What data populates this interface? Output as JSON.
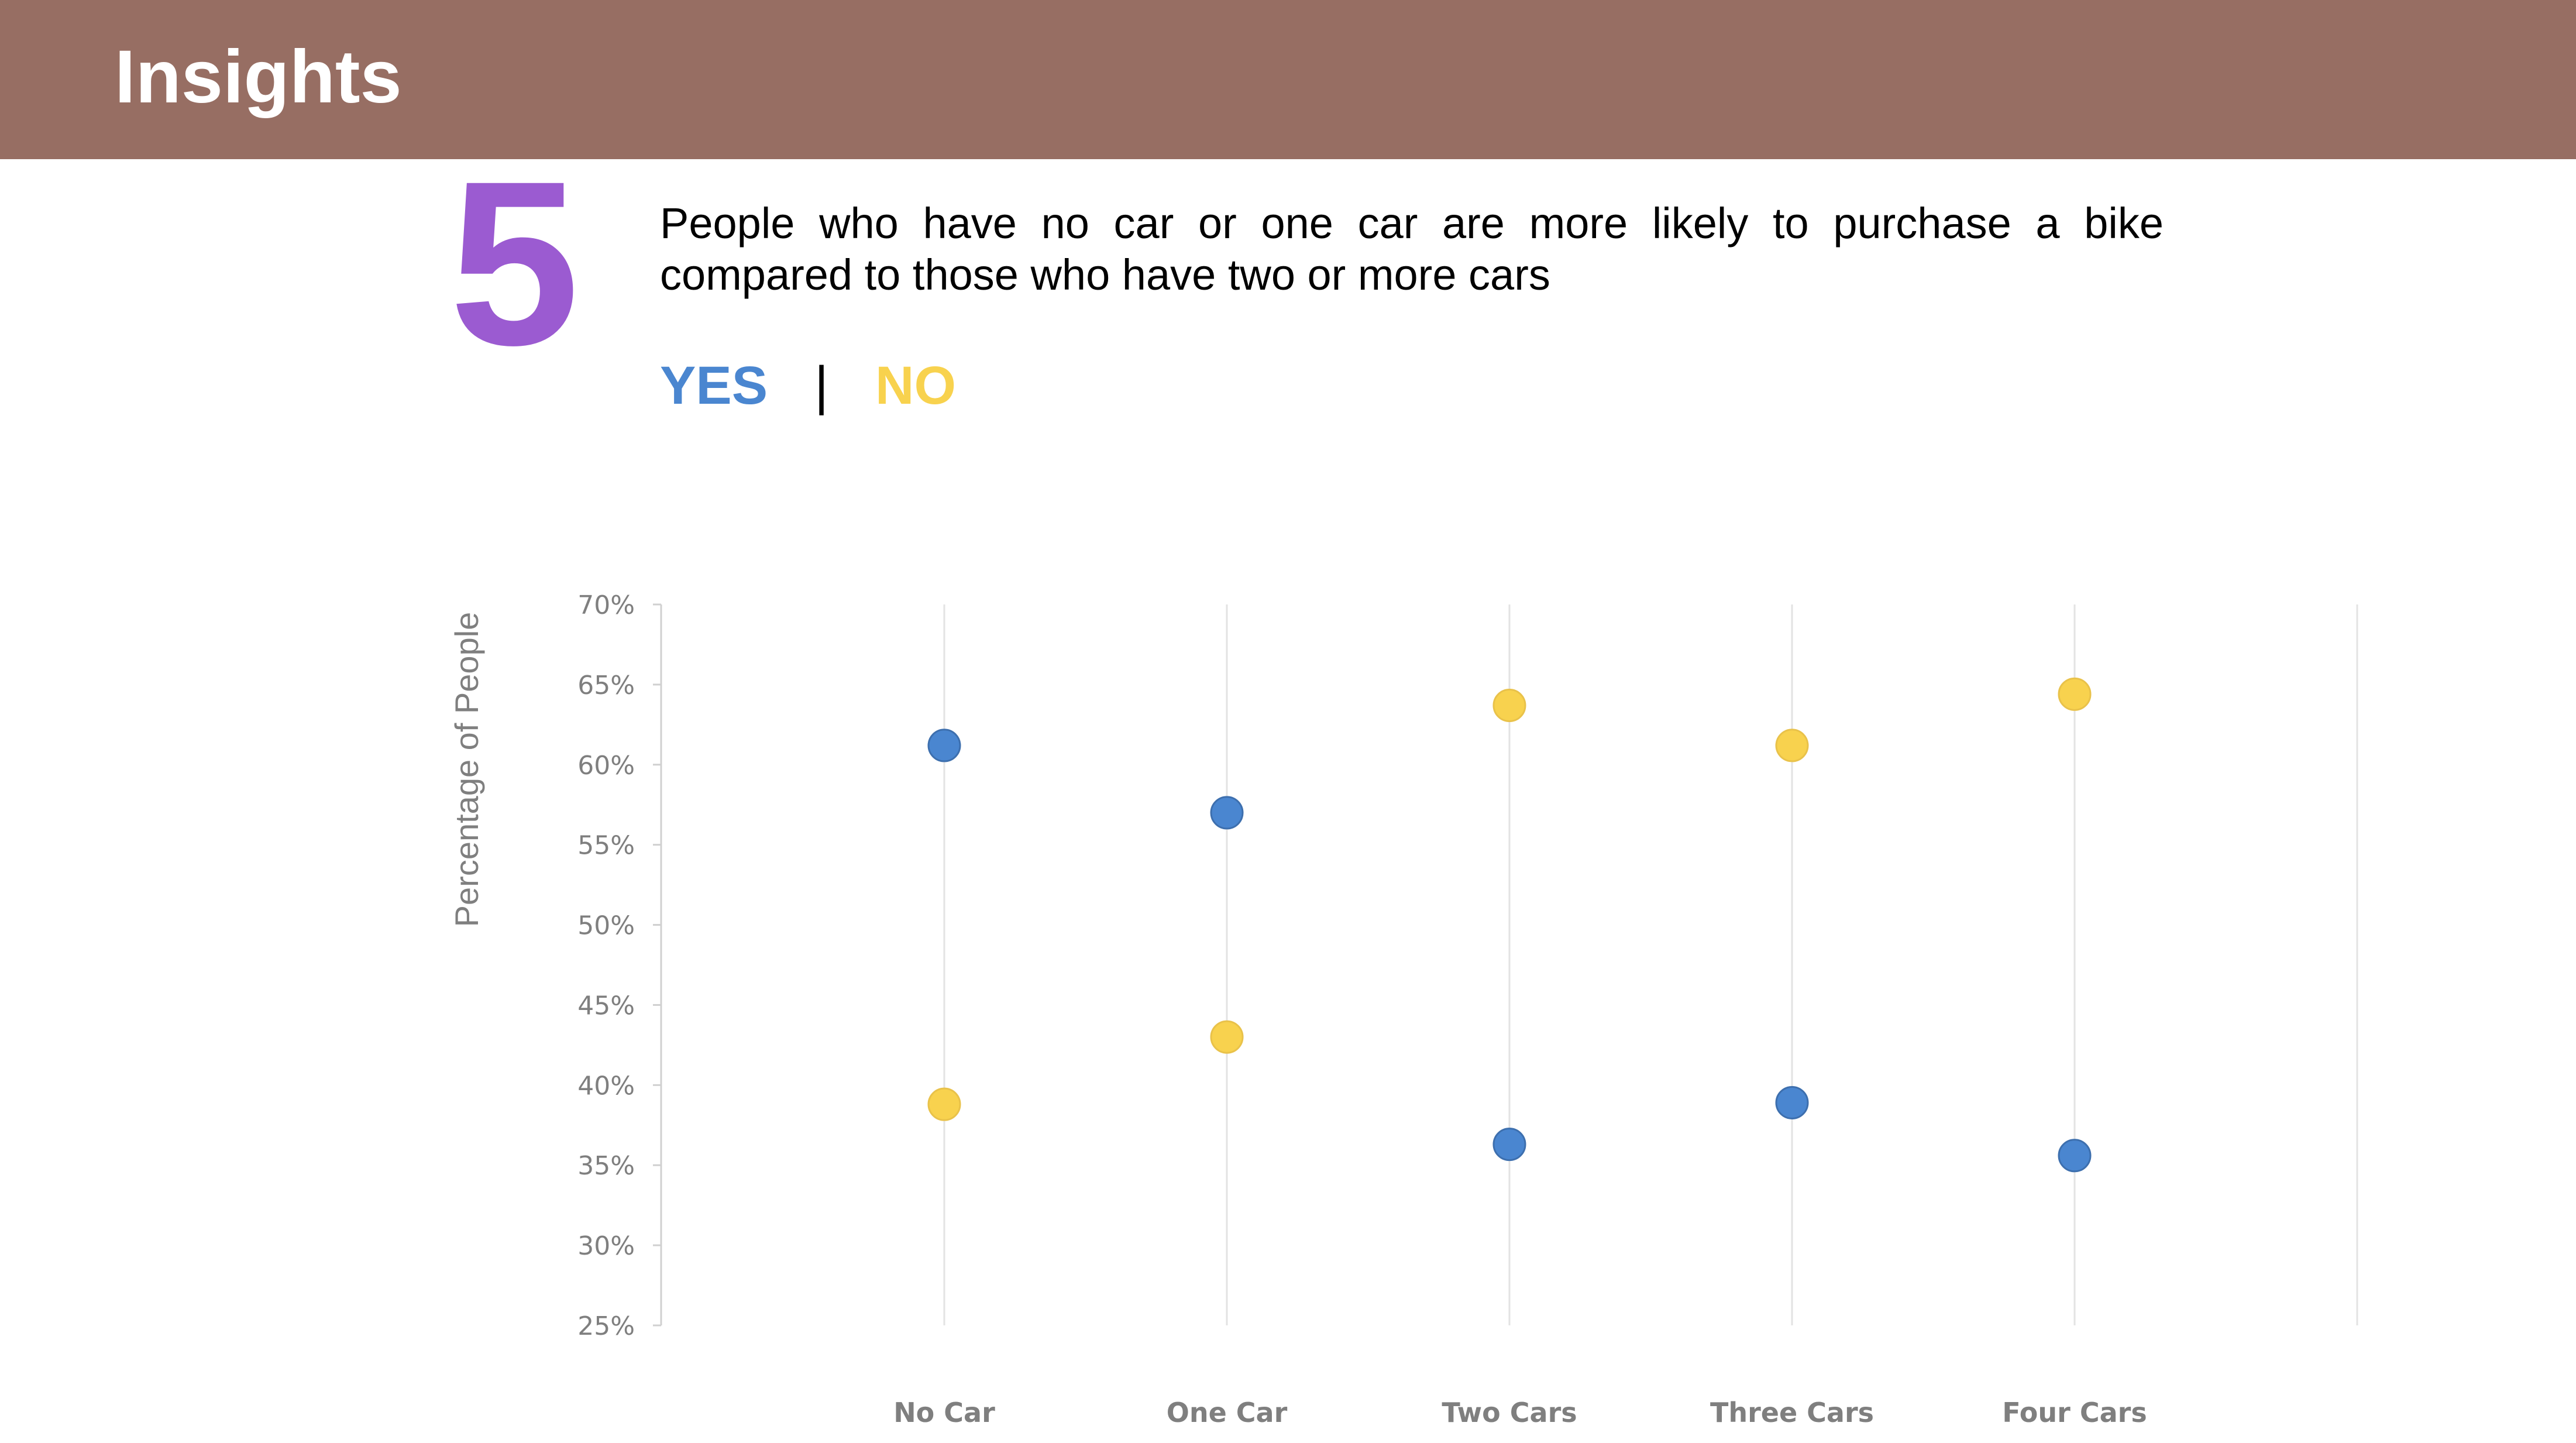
{
  "header": {
    "title": "Insights"
  },
  "insight": {
    "number": "5",
    "text": "People who have no car or one car are more likely to purchase a bike compared to those who have two or more cars",
    "yes_label": "YES",
    "separator": "|",
    "no_label": "NO"
  },
  "colors": {
    "header_bg": "#976e63",
    "number": "#9b5bd1",
    "yes": "#4a86d0",
    "no": "#f8d24e",
    "axis_text": "#7f7f7f"
  },
  "chart_data": {
    "type": "scatter",
    "ylabel": "Percentage of People",
    "xlabel": "",
    "categories": [
      "No Car",
      "One Car",
      "Two Cars",
      "Three Cars",
      "Four Cars"
    ],
    "ylim": [
      25,
      70
    ],
    "yticks": [
      "25%",
      "30%",
      "35%",
      "40%",
      "45%",
      "50%",
      "55%",
      "60%",
      "65%",
      "70%"
    ],
    "grid": "vertical",
    "series": [
      {
        "name": "YES",
        "color": "#4a86d0",
        "values": [
          61.2,
          57.0,
          36.3,
          38.9,
          35.6
        ]
      },
      {
        "name": "NO",
        "color": "#f8d24e",
        "values": [
          38.8,
          43.0,
          63.7,
          61.2,
          64.4
        ]
      }
    ]
  }
}
